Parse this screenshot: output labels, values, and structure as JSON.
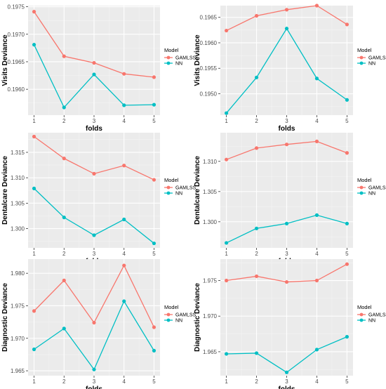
{
  "theme": {
    "panel_background": "#ebebeb",
    "major_grid": "#ffffff",
    "minor_grid": "#f4f4f4",
    "series_colors": {
      "GAMLSS": "#f8766d",
      "NN": "#00bfc4"
    }
  },
  "chart_data": [
    {
      "type": "line",
      "xlabel": "folds",
      "ylabel": "Visits Deviance",
      "x": [
        1,
        2,
        3,
        4,
        5
      ],
      "xticks": [
        "1",
        "2",
        "3",
        "4",
        "5"
      ],
      "ylim": [
        0.19553,
        0.19752
      ],
      "yticks": [
        0.196,
        0.1965,
        0.197,
        0.1975
      ],
      "ytick_labels": [
        "0.1960",
        "0.1965",
        "0.1970",
        "0.1975"
      ],
      "legend": {
        "title": "Model",
        "placement": "right",
        "entries": [
          "GAMLSS",
          "NN"
        ]
      },
      "series": [
        {
          "name": "GAMLSS",
          "values": [
            0.19741,
            0.1966,
            0.19648,
            0.19628,
            0.19622
          ]
        },
        {
          "name": "NN",
          "values": [
            0.19681,
            0.19567,
            0.19627,
            0.19571,
            0.19572
          ]
        }
      ]
    },
    {
      "type": "line",
      "xlabel": "folds",
      "ylabel": "Visits Deviance",
      "x": [
        1,
        2,
        3,
        4,
        5
      ],
      "xticks": [
        "1",
        "2",
        "3",
        "4",
        "5"
      ],
      "ylim": [
        0.19458,
        0.19673
      ],
      "yticks": [
        0.195,
        0.1955,
        0.196,
        0.1965
      ],
      "ytick_labels": [
        "0.1950",
        "0.1955",
        "0.1960",
        "0.1965"
      ],
      "legend": {
        "title": "Model",
        "placement": "right",
        "entries": [
          "GAMLSS",
          "NN"
        ]
      },
      "series": [
        {
          "name": "GAMLSS",
          "values": [
            0.19624,
            0.19653,
            0.19665,
            0.19673,
            0.19636
          ]
        },
        {
          "name": "NN",
          "values": [
            0.19462,
            0.19532,
            0.19628,
            0.1953,
            0.19488
          ]
        }
      ]
    },
    {
      "type": "line",
      "xlabel": "folds",
      "ylabel": "Dentalcare Deviance",
      "x": [
        1,
        2,
        3,
        4,
        5
      ],
      "xticks": [
        "1",
        "2",
        "3",
        "4",
        "5"
      ],
      "ylim": [
        1.29621,
        1.31886
      ],
      "yticks": [
        1.3,
        1.305,
        1.31,
        1.315
      ],
      "ytick_labels": [
        "1.300",
        "1.305",
        "1.310",
        "1.315"
      ],
      "legend": {
        "title": "Model",
        "placement": "right",
        "entries": [
          "GAMLSS",
          "NN"
        ]
      },
      "series": [
        {
          "name": "GAMLSS",
          "values": [
            1.3181,
            1.3138,
            1.3108,
            1.3124,
            1.3096
          ]
        },
        {
          "name": "NN",
          "values": [
            1.3079,
            1.3022,
            1.2987,
            1.3018,
            1.2971
          ]
        }
      ]
    },
    {
      "type": "line",
      "xlabel": "folds",
      "ylabel": "Dentalcare Deviance",
      "x": [
        1,
        2,
        3,
        4,
        5
      ],
      "xticks": [
        "1",
        "2",
        "3",
        "4",
        "5"
      ],
      "ylim": [
        1.29568,
        1.31474
      ],
      "yticks": [
        1.3,
        1.305,
        1.31
      ],
      "ytick_labels": [
        "1.300",
        "1.305",
        "1.310"
      ],
      "legend": {
        "title": "Model",
        "placement": "right",
        "entries": [
          "GAMLSS",
          "NN"
        ]
      },
      "series": [
        {
          "name": "GAMLSS",
          "values": [
            1.3103,
            1.3122,
            1.3128,
            1.3133,
            1.3114
          ]
        },
        {
          "name": "NN",
          "values": [
            1.2965,
            1.2989,
            1.2997,
            1.3011,
            1.2997
          ]
        }
      ]
    },
    {
      "type": "line",
      "xlabel": "folds",
      "ylabel": "Diagnostic Deviance",
      "x": [
        1,
        2,
        3,
        4,
        5
      ],
      "xticks": [
        "1",
        "2",
        "3",
        "4",
        "5"
      ],
      "ylim": [
        1.96425,
        1.98218
      ],
      "yticks": [
        1.965,
        1.97,
        1.975,
        1.98
      ],
      "ytick_labels": [
        "1.965",
        "1.970",
        "1.975",
        "1.980"
      ],
      "legend": {
        "title": "Model",
        "placement": "right",
        "entries": [
          "GAMLSS",
          "NN"
        ]
      },
      "series": [
        {
          "name": "GAMLSS",
          "values": [
            1.9742,
            1.9789,
            1.9724,
            1.9812,
            1.9717
          ]
        },
        {
          "name": "NN",
          "values": [
            1.9683,
            1.9715,
            1.9652,
            1.9757,
            1.9681
          ]
        }
      ]
    },
    {
      "type": "line",
      "xlabel": "folds",
      "ylabel": "Diagnostic Deviance",
      "x": [
        1,
        2,
        3,
        4,
        5
      ],
      "xticks": [
        "1",
        "2",
        "3",
        "4",
        "5"
      ],
      "ylim": [
        1.96164,
        1.97801
      ],
      "yticks": [
        1.965,
        1.97,
        1.975
      ],
      "ytick_labels": [
        "1.965",
        "1.970",
        "1.975"
      ],
      "legend": {
        "title": "Model",
        "placement": "right",
        "entries": [
          "GAMLSS",
          "NN"
        ]
      },
      "series": [
        {
          "name": "GAMLSS",
          "values": [
            1.975,
            1.9756,
            1.9748,
            1.975,
            1.9773
          ]
        },
        {
          "name": "NN",
          "values": [
            1.9647,
            1.9648,
            1.9621,
            1.9653,
            1.9671
          ]
        }
      ]
    }
  ]
}
